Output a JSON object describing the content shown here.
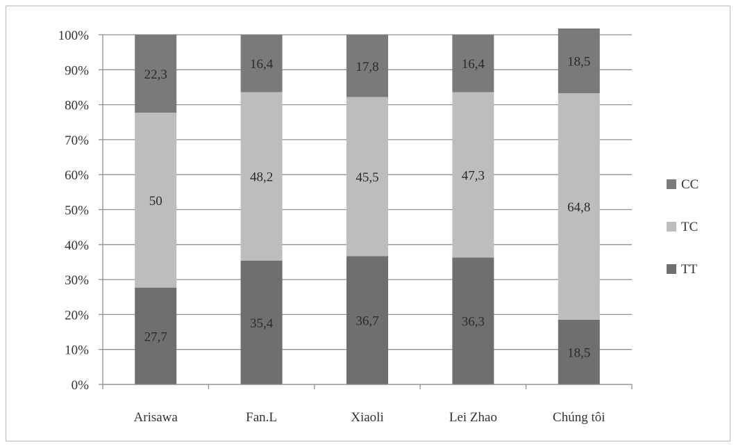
{
  "chart_data": {
    "type": "bar",
    "stacked": true,
    "categories": [
      "Arisawa",
      "Fan.L",
      "Xiaoli",
      "Lei Zhao",
      "Chúng tôi"
    ],
    "series": [
      {
        "name": "TT",
        "values": [
          27.7,
          35.4,
          36.7,
          36.3,
          18.5
        ],
        "labels": [
          "27,7",
          "35,4",
          "36,7",
          "36,3",
          "18,5"
        ],
        "color": "#6f6f6f"
      },
      {
        "name": "TC",
        "values": [
          50,
          48.2,
          45.5,
          47.3,
          64.8
        ],
        "labels": [
          "50",
          "48,2",
          "45,5",
          "47,3",
          "64,8"
        ],
        "color": "#bdbdbd"
      },
      {
        "name": "CC",
        "values": [
          22.3,
          16.4,
          17.8,
          16.4,
          18.5
        ],
        "labels": [
          "22,3",
          "16,4",
          "17,8",
          "16,4",
          "18,5"
        ],
        "color": "#7a7a7a"
      }
    ],
    "ylim": [
      0,
      100
    ],
    "yticks": [
      "0%",
      "10%",
      "20%",
      "30%",
      "40%",
      "50%",
      "60%",
      "70%",
      "80%",
      "90%",
      "100%"
    ],
    "grid": true,
    "legend_placement": "right",
    "legend_order": [
      "CC",
      "TC",
      "TT"
    ]
  }
}
